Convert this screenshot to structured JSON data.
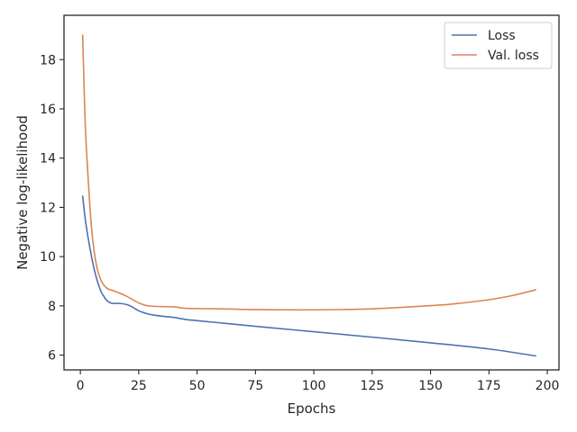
{
  "chart_data": {
    "type": "line",
    "title": "",
    "xlabel": "Epochs",
    "ylabel": "Negative log-likelihood",
    "xlim": [
      -7,
      205
    ],
    "ylim": [
      5.4,
      19.8
    ],
    "xticks": [
      0,
      25,
      50,
      75,
      100,
      125,
      150,
      175,
      200
    ],
    "yticks": [
      6,
      8,
      10,
      12,
      14,
      16,
      18
    ],
    "grid": false,
    "legend_position": "top-right",
    "series": [
      {
        "name": "Loss",
        "color": "#4c72b0",
        "x": [
          1,
          2,
          3,
          4,
          5,
          6,
          7,
          8,
          9,
          10,
          11,
          12,
          13,
          14,
          15,
          17,
          20,
          22,
          25,
          28,
          30,
          35,
          40,
          45,
          50,
          60,
          75,
          100,
          125,
          150,
          175,
          195
        ],
        "y": [
          12.45,
          11.6,
          10.95,
          10.4,
          9.9,
          9.45,
          9.1,
          8.8,
          8.55,
          8.4,
          8.25,
          8.17,
          8.12,
          8.1,
          8.1,
          8.1,
          8.05,
          7.97,
          7.8,
          7.7,
          7.65,
          7.58,
          7.53,
          7.45,
          7.4,
          7.31,
          7.17,
          6.95,
          6.73,
          6.5,
          6.25,
          5.97
        ]
      },
      {
        "name": "Val. loss",
        "color": "#dd8452",
        "x": [
          1,
          2,
          3,
          4,
          5,
          6,
          7,
          8,
          9,
          10,
          11,
          12,
          14,
          16,
          20,
          25,
          28,
          30,
          35,
          40,
          45,
          50,
          60,
          75,
          100,
          125,
          150,
          160,
          175,
          185,
          195
        ],
        "y": [
          19.0,
          15.6,
          13.7,
          12.15,
          10.95,
          10.15,
          9.6,
          9.25,
          9.0,
          8.85,
          8.75,
          8.68,
          8.62,
          8.55,
          8.38,
          8.12,
          8.02,
          7.99,
          7.97,
          7.96,
          7.9,
          7.89,
          7.88,
          7.85,
          7.84,
          7.88,
          8.01,
          8.08,
          8.25,
          8.42,
          8.65
        ]
      }
    ]
  }
}
